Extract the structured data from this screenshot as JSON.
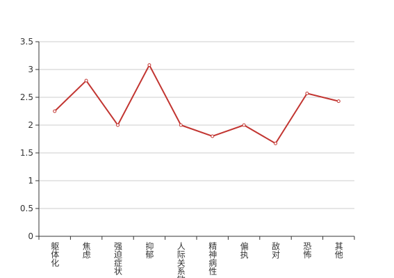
{
  "chart_data": {
    "type": "line",
    "categories": [
      "躯体化",
      "焦虑",
      "强迫症状",
      "抑郁",
      "人际关系敏感",
      "精神病性",
      "偏执",
      "敌对",
      "恐怖",
      "其他"
    ],
    "series": [
      {
        "name": "",
        "color": "#c23531",
        "values": [
          2.25,
          2.8,
          2.0,
          3.08,
          2.0,
          1.8,
          2.0,
          1.67,
          2.57,
          2.43
        ]
      }
    ],
    "ylim": [
      0,
      3.5
    ],
    "yticks": [
      0,
      0.5,
      1,
      1.5,
      2,
      2.5,
      3,
      3.5
    ],
    "grid": true
  }
}
